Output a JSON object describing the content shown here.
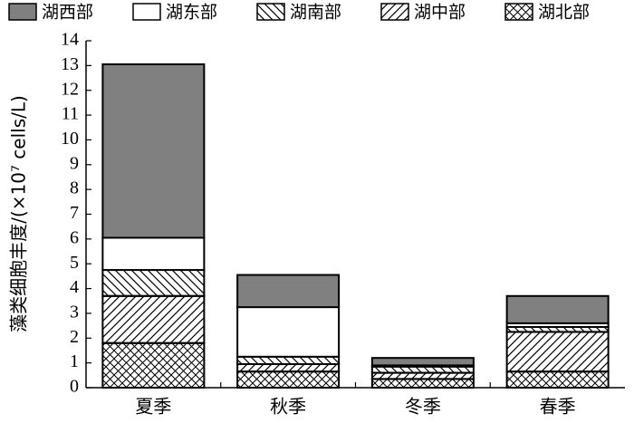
{
  "chart_data": {
    "type": "stacked_bar",
    "y_label": "藻类细胞丰度/(×10⁷ cells/L)",
    "categories": [
      "夏季",
      "秋季",
      "冬季",
      "春季"
    ],
    "series": [
      {
        "name": "湖北部",
        "color": "#ffffff",
        "hatch": "cross",
        "values": [
          1.8,
          0.65,
          0.35,
          0.65
        ]
      },
      {
        "name": "湖中部",
        "color": "#ffffff",
        "hatch": "slash",
        "values": [
          1.9,
          0.3,
          0.25,
          1.6
        ]
      },
      {
        "name": "湖南部",
        "color": "#ffffff",
        "hatch": "backslash",
        "values": [
          1.05,
          0.3,
          0.25,
          0.2
        ]
      },
      {
        "name": "湖东部",
        "color": "#ffffff",
        "hatch": "none",
        "values": [
          1.3,
          2.0,
          0.05,
          0.15
        ]
      },
      {
        "name": "湖西部",
        "color": "#808080",
        "hatch": "none",
        "values": [
          7.0,
          1.3,
          0.3,
          1.1
        ]
      }
    ],
    "legend_order": [
      4,
      3,
      2,
      1,
      0
    ],
    "ylim": [
      0,
      14
    ],
    "yticks": [
      0,
      1,
      2,
      3,
      4,
      5,
      6,
      7,
      8,
      9,
      10,
      11,
      12,
      13,
      14
    ]
  }
}
